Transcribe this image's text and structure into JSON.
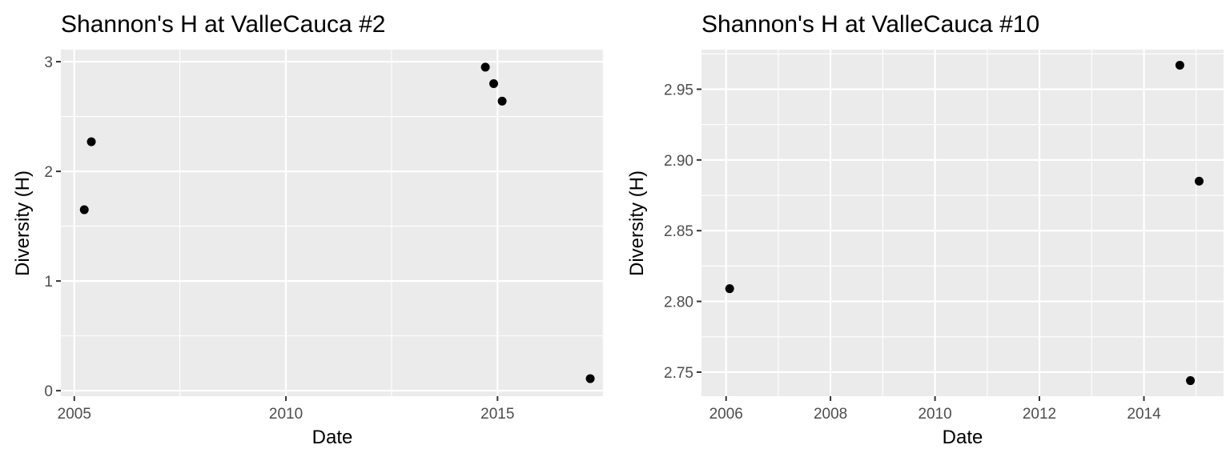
{
  "chart_data": [
    {
      "type": "scatter",
      "title": "Shannon's H at ValleCauca #2",
      "xlabel": "Date",
      "ylabel": "Diversity (H)",
      "x_scale": "date",
      "xlim": [
        "2004-09-07",
        "2017-07-06"
      ],
      "ylim": [
        -0.05,
        3.11
      ],
      "xticks": [
        {
          "label": "2005",
          "date": "2005-01-01"
        },
        {
          "label": "2010",
          "date": "2010-01-01"
        },
        {
          "label": "2015",
          "date": "2015-01-01"
        }
      ],
      "xminor": [
        "2007-07-01",
        "2012-07-01",
        "2017-07-01"
      ],
      "yticks": [
        0,
        1,
        2,
        3
      ],
      "yminor": [
        0.5,
        1.5,
        2.5
      ],
      "grid": true,
      "points": [
        {
          "x": "2005-03-28",
          "y": 1.65
        },
        {
          "x": "2005-05-28",
          "y": 2.27
        },
        {
          "x": "2014-09-18",
          "y": 2.95
        },
        {
          "x": "2014-11-29",
          "y": 2.8
        },
        {
          "x": "2015-02-10",
          "y": 2.64
        },
        {
          "x": "2017-03-11",
          "y": 0.11
        }
      ]
    },
    {
      "type": "scatter",
      "title": "Shannon's H at ValleCauca #10",
      "xlabel": "Date",
      "ylabel": "Diversity (H)",
      "x_scale": "date",
      "xlim": [
        "2005-07-13",
        "2015-07-12"
      ],
      "ylim": [
        2.733,
        2.978
      ],
      "xticks": [
        {
          "label": "2006",
          "date": "2006-01-01"
        },
        {
          "label": "2008",
          "date": "2008-01-01"
        },
        {
          "label": "2010",
          "date": "2010-01-01"
        },
        {
          "label": "2012",
          "date": "2012-01-01"
        },
        {
          "label": "2014",
          "date": "2014-01-01"
        }
      ],
      "xminor": [
        "2007-01-01",
        "2009-01-01",
        "2011-01-01",
        "2013-01-01",
        "2015-01-01"
      ],
      "yticks": [
        {
          "label": "2.75",
          "value": 2.75
        },
        {
          "label": "2.80",
          "value": 2.8
        },
        {
          "label": "2.85",
          "value": 2.85
        },
        {
          "label": "2.90",
          "value": 2.9
        },
        {
          "label": "2.95",
          "value": 2.95
        }
      ],
      "yminor": [
        2.775,
        2.825,
        2.875,
        2.925,
        2.975
      ],
      "grid": true,
      "points": [
        {
          "x": "2006-01-26",
          "y": 2.809
        },
        {
          "x": "2014-09-09",
          "y": 2.967
        },
        {
          "x": "2014-11-22",
          "y": 2.744
        },
        {
          "x": "2015-01-22",
          "y": 2.885
        }
      ]
    }
  ]
}
